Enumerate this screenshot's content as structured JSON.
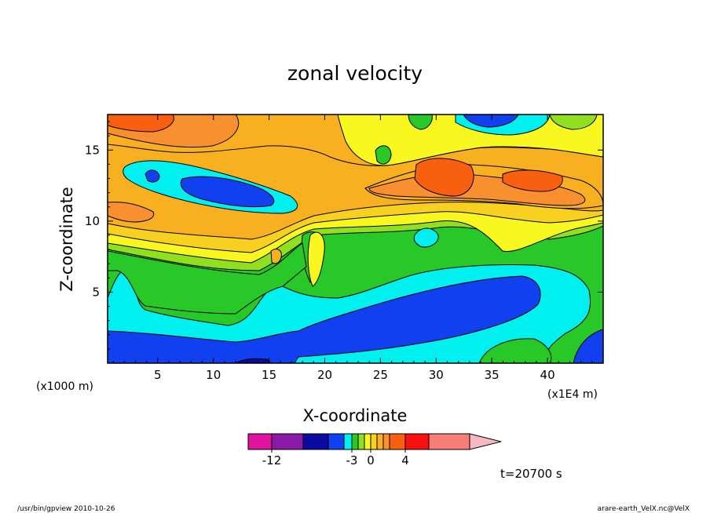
{
  "chart_data": {
    "type": "heatmap",
    "title": "zonal velocity",
    "xlabel": "X-coordinate",
    "ylabel": "Z-coordinate",
    "x_unit_label": "(x1E4 m)",
    "y_unit_label": "(x1000 m)",
    "xlim": [
      0.5,
      45
    ],
    "ylim": [
      0,
      17.5
    ],
    "x_ticks": [
      5,
      10,
      15,
      20,
      25,
      30,
      35,
      40
    ],
    "y_ticks": [
      5,
      10,
      15
    ],
    "colorbar": {
      "bins": [
        -15,
        -12,
        -9,
        -6,
        -4,
        -3,
        -2,
        -1,
        0,
        1,
        2,
        3,
        4,
        6,
        8
      ],
      "colors": [
        "#e0139e",
        "#8a1aa8",
        "#0a0aa0",
        "#1040f0",
        "#00f0f0",
        "#28c828",
        "#90e020",
        "#f8f820",
        "#f8d020",
        "#f8b020",
        "#f89030",
        "#f86010",
        "#f81010",
        "#f87c78",
        "#f8b8c0"
      ],
      "tick_labels": [
        {
          "value": -12,
          "label": "-12"
        },
        {
          "value": -3,
          "label": "-3"
        },
        {
          "value": 0,
          "label": "0"
        },
        {
          "value": 4,
          "label": "4"
        }
      ]
    },
    "field_colors": {
      "blue": "#1040f0",
      "navy": "#0a0aa0",
      "cyan": "#00f0f0",
      "green": "#28c828",
      "lime": "#90e020",
      "yellow": "#f8f820",
      "gold": "#f8d020",
      "amber": "#f8b020",
      "orange": "#f89030",
      "darkorange": "#f86010"
    },
    "time_label": "t=20700 s"
  },
  "footer": {
    "left": "/usr/bin/gpview  2010-10-26",
    "right": "arare-earth_VelX.nc@VelX"
  }
}
